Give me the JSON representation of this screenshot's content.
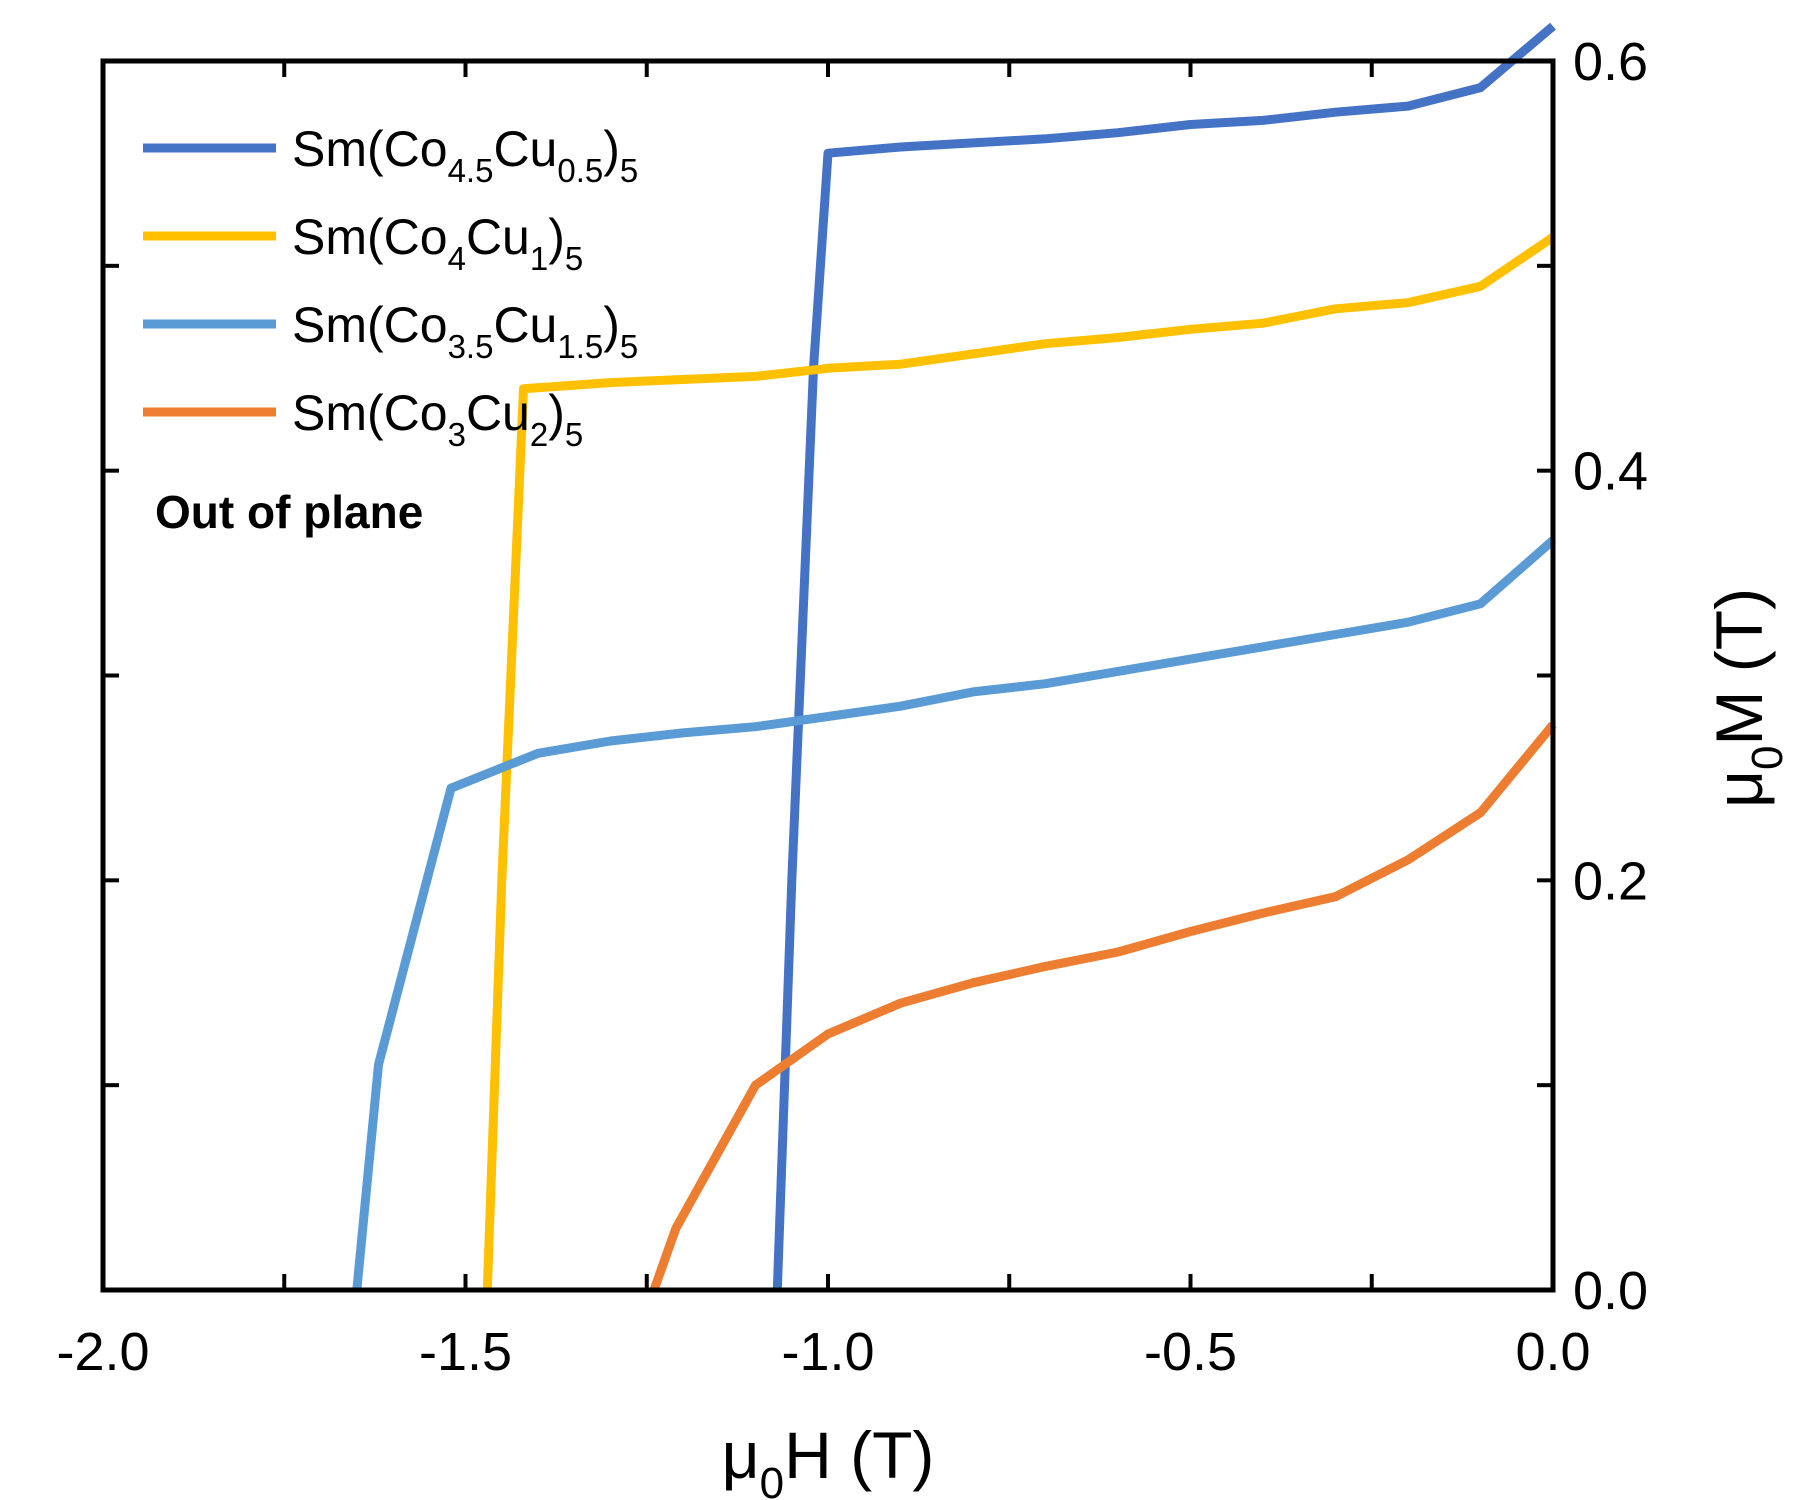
{
  "chart_data": {
    "type": "line",
    "title": "",
    "xlabel": {
      "main": "μ",
      "sub": "0",
      "tail": "H (T)"
    },
    "ylabel": {
      "main": "μ",
      "sub": "0",
      "tail": "M (T)"
    },
    "xlim": [
      -2.0,
      0.0
    ],
    "ylim": [
      0.0,
      0.6
    ],
    "x_ticks": [
      -2.0,
      -1.75,
      -1.5,
      -1.25,
      -1.0,
      -0.75,
      -0.5,
      -0.25,
      0.0
    ],
    "x_tick_labels": [
      "-2.0",
      "",
      "-1.5",
      "",
      "-1.0",
      "",
      "-0.5",
      "",
      "0.0"
    ],
    "y_ticks": [
      0.0,
      0.1,
      0.2,
      0.3,
      0.4,
      0.5,
      0.6
    ],
    "y_tick_labels": [
      "0.0",
      "",
      "0.2",
      "",
      "0.4",
      "",
      "0.6"
    ],
    "y_axis_side": "right",
    "grid": false,
    "legend_position": "top-left",
    "annotation": "Out of plane",
    "series": [
      {
        "name": "Sm(Co4.5Cu0.5)5",
        "label_parts": [
          [
            "Sm(Co",
            ""
          ],
          [
            "4.5",
            "sub"
          ],
          [
            "Cu",
            ""
          ],
          [
            "0.5",
            "sub"
          ],
          [
            ")",
            ""
          ],
          [
            "5",
            "sub"
          ]
        ],
        "color": "#4472c4",
        "x": [
          -1.07,
          -1.05,
          -1.02,
          -1.0,
          -0.9,
          -0.8,
          -0.7,
          -0.6,
          -0.5,
          -0.4,
          -0.3,
          -0.2,
          -0.1,
          0.0
        ],
        "y": [
          0.0,
          0.2,
          0.45,
          0.555,
          0.558,
          0.56,
          0.562,
          0.565,
          0.569,
          0.571,
          0.575,
          0.578,
          0.587,
          0.617
        ]
      },
      {
        "name": "Sm(Co4Cu1)5",
        "label_parts": [
          [
            "Sm(Co",
            ""
          ],
          [
            "4",
            "sub"
          ],
          [
            "Cu",
            ""
          ],
          [
            "1",
            "sub"
          ],
          [
            ")",
            ""
          ],
          [
            "5",
            "sub"
          ]
        ],
        "color": "#ffc000",
        "x": [
          -1.47,
          -1.45,
          -1.42,
          -1.3,
          -1.1,
          -1.0,
          -0.9,
          -0.8,
          -0.7,
          -0.6,
          -0.5,
          -0.4,
          -0.3,
          -0.2,
          -0.1,
          0.0
        ],
        "y": [
          0.0,
          0.2,
          0.44,
          0.443,
          0.446,
          0.45,
          0.452,
          0.457,
          0.462,
          0.465,
          0.469,
          0.472,
          0.479,
          0.482,
          0.49,
          0.514
        ]
      },
      {
        "name": "Sm(Co3.5Cu1.5)5",
        "label_parts": [
          [
            "Sm(Co",
            ""
          ],
          [
            "3.5",
            "sub"
          ],
          [
            "Cu",
            ""
          ],
          [
            "1.5",
            "sub"
          ],
          [
            ")",
            ""
          ],
          [
            "5",
            "sub"
          ]
        ],
        "color": "#5b9bd5",
        "x": [
          -1.65,
          -1.62,
          -1.52,
          -1.4,
          -1.3,
          -1.2,
          -1.1,
          -1.0,
          -0.9,
          -0.8,
          -0.7,
          -0.6,
          -0.5,
          -0.4,
          -0.3,
          -0.2,
          -0.1,
          0.0
        ],
        "y": [
          0.0,
          0.11,
          0.245,
          0.262,
          0.268,
          0.272,
          0.275,
          0.28,
          0.285,
          0.292,
          0.296,
          0.302,
          0.308,
          0.314,
          0.32,
          0.326,
          0.335,
          0.366
        ]
      },
      {
        "name": "Sm(Co3Cu2)5",
        "label_parts": [
          [
            "Sm(Co",
            ""
          ],
          [
            "3",
            "sub"
          ],
          [
            "Cu",
            ""
          ],
          [
            "2",
            "sub"
          ],
          [
            ")",
            ""
          ],
          [
            "5",
            "sub"
          ]
        ],
        "color": "#ed7d31",
        "x": [
          -1.24,
          -1.21,
          -1.1,
          -1.0,
          -0.9,
          -0.8,
          -0.7,
          -0.6,
          -0.5,
          -0.4,
          -0.3,
          -0.2,
          -0.1,
          0.0
        ],
        "y": [
          0.0,
          0.03,
          0.1,
          0.125,
          0.14,
          0.15,
          0.158,
          0.165,
          0.175,
          0.184,
          0.192,
          0.21,
          0.233,
          0.276
        ]
      }
    ]
  }
}
